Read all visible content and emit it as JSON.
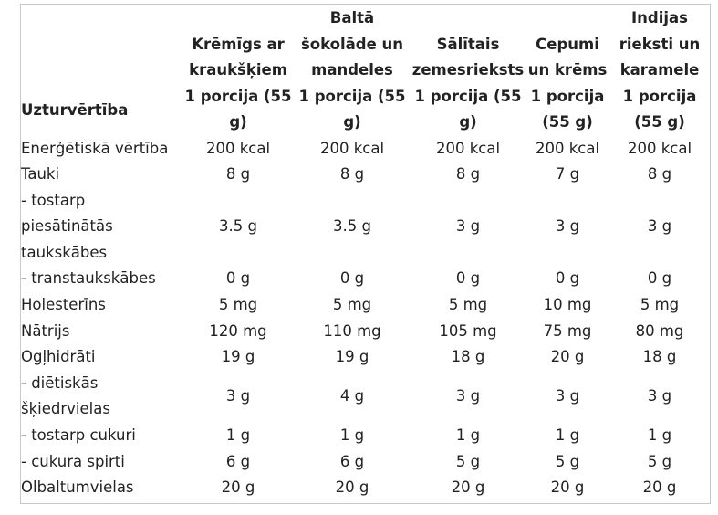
{
  "table": {
    "corner_label": "Uzturvērtība",
    "columns": [
      {
        "name": "Krēmīgs ar kraukšķiem",
        "portion": "1 porcija (55 g)"
      },
      {
        "name": "Baltā šokolāde un mandeles",
        "portion": "1 porcija (55 g)"
      },
      {
        "name": "Sālītais zemesrieksts",
        "portion": "1 porcija (55 g)"
      },
      {
        "name": "Cepumi un krēms",
        "portion": "1 porcija (55 g)"
      },
      {
        "name": "Indijas rieksti un karamele",
        "portion": "1 porcija (55 g)"
      }
    ],
    "rows": [
      {
        "label": "Enerģētiskā vērtība",
        "values": [
          "200 kcal",
          "200 kcal",
          "200 kcal",
          "200 kcal",
          "200 kcal"
        ]
      },
      {
        "label": "Tauki",
        "values": [
          "8 g",
          "8 g",
          "8 g",
          "7 g",
          "8 g"
        ]
      },
      {
        "label": " - tostarp piesātinātās taukskābes",
        "values": [
          "3.5 g",
          "3.5 g",
          "3 g",
          "3 g",
          "3 g"
        ]
      },
      {
        "label": " - transtaukskābes",
        "values": [
          "0 g",
          "0 g",
          "0 g",
          "0 g",
          "0 g"
        ]
      },
      {
        "label": "Holesterīns",
        "values": [
          "5 mg",
          "5 mg",
          "5 mg",
          "10 mg",
          "5 mg"
        ]
      },
      {
        "label": "Nātrijs",
        "values": [
          "120 mg",
          "110 mg",
          "105 mg",
          "75 mg",
          "80 mg"
        ]
      },
      {
        "label": "Ogļhidrāti",
        "values": [
          "19 g",
          "19 g",
          "18 g",
          "20 g",
          "18 g"
        ]
      },
      {
        "label": " - diētiskās šķiedrvielas",
        "values": [
          "3 g",
          "4 g",
          "3 g",
          "3 g",
          "3 g"
        ]
      },
      {
        "label": " - tostarp cukuri",
        "values": [
          "1 g",
          "1 g",
          "1 g",
          "1 g",
          "1 g"
        ]
      },
      {
        "label": " - cukura spirti",
        "values": [
          "6 g",
          "6 g",
          "5 g",
          "5 g",
          "5 g"
        ]
      },
      {
        "label": "Olbaltumvielas",
        "values": [
          "20 g",
          "20 g",
          "20 g",
          "20 g",
          "20 g"
        ]
      }
    ]
  }
}
